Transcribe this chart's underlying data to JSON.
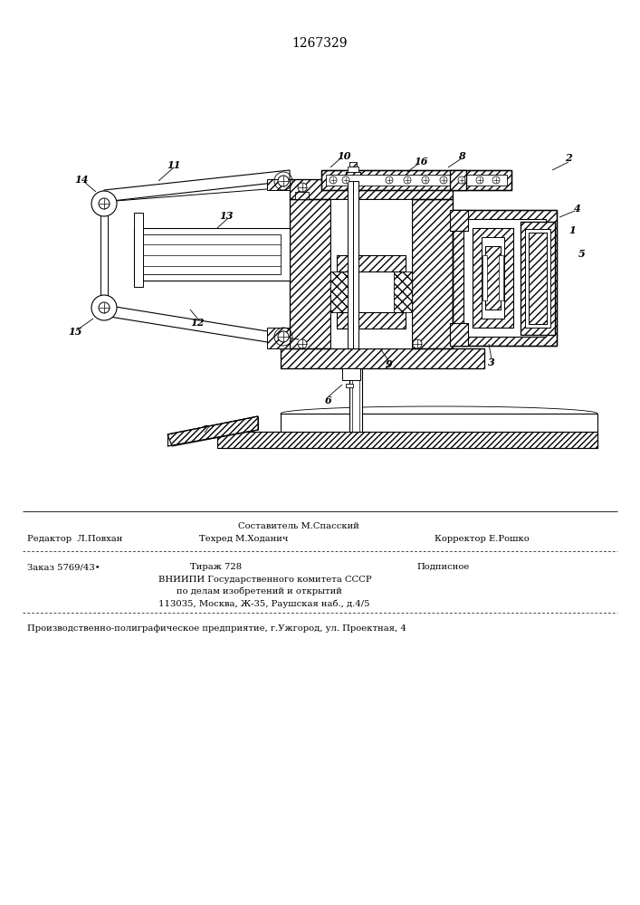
{
  "patent_number": "1267329",
  "bg_color": "#ffffff",
  "text_color": "#000000",
  "hatch_color": "#000000",
  "gray_light": "#d8d8d8",
  "gray_med": "#b0b0b0",
  "footer_sestavitel": "Составитель М.Спасский",
  "footer_redaktor": "Редактор  Л.Повхан",
  "footer_tekhred": "Техред М.Ходанич",
  "footer_korrektor": "Корректор Е.Рошко",
  "footer_zakaz": "Заказ 5769/43•",
  "footer_tirazh": "Тираж 728",
  "footer_podpisnoe": "Подписное",
  "footer_vniip1": "ВНИИПИ Государственного комитета СССР",
  "footer_vniip2": "по делам изобретений и открытий",
  "footer_vniip3": "113035, Москва, Ж-35, Раушская наб., д.4/5",
  "footer_prod": "Производственно-полиграфическое предприятие, г.Ужгород, ул. Проектная, 4",
  "page_width": 7.07,
  "page_height": 10.0
}
